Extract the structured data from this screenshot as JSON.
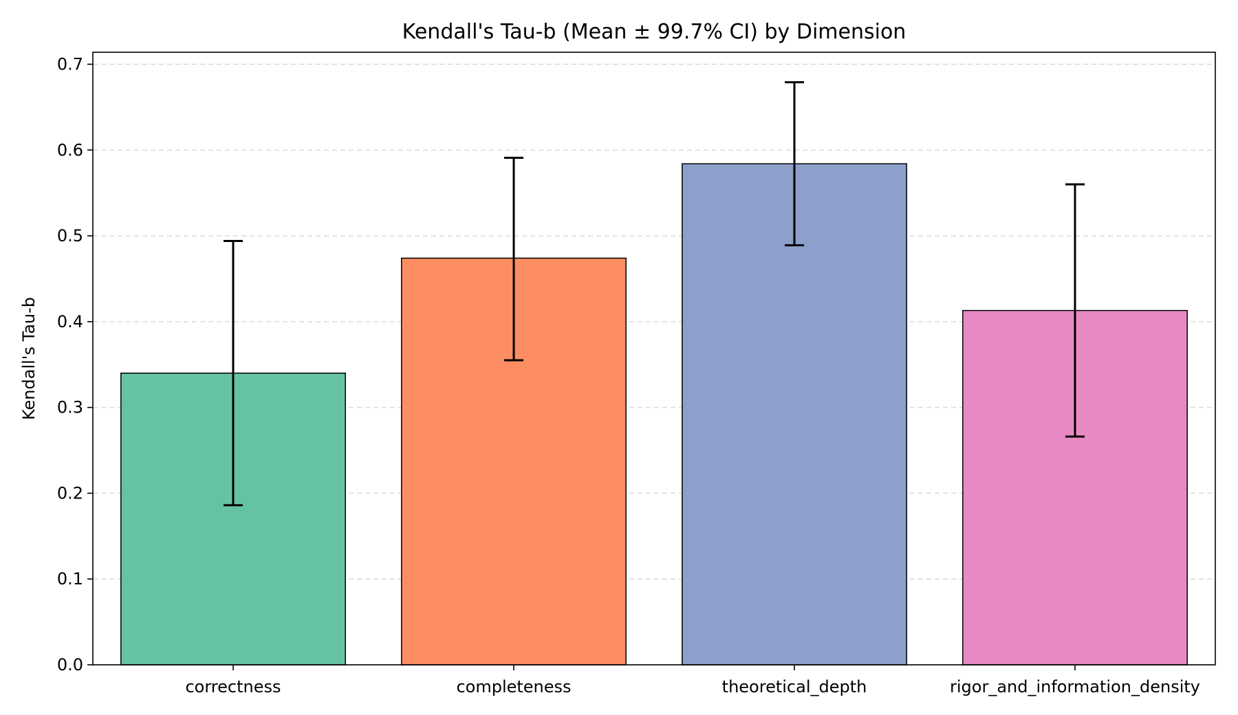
{
  "chart_data": {
    "type": "bar",
    "title": "Kendall's Tau-b (Mean ± 99.7% CI) by Dimension",
    "xlabel": "",
    "ylabel": "Kendall's Tau-b",
    "ylim": [
      0,
      0.714
    ],
    "yticks": [
      0.0,
      0.1,
      0.2,
      0.3,
      0.4,
      0.5,
      0.6,
      0.7
    ],
    "ytick_labels": [
      "0.0",
      "0.1",
      "0.2",
      "0.3",
      "0.4",
      "0.5",
      "0.6",
      "0.7"
    ],
    "grid": "y-dashed",
    "categories": [
      "correctness",
      "completeness",
      "theoretical_depth",
      "rigor_and_information_density"
    ],
    "values": [
      0.34,
      0.474,
      0.584,
      0.413
    ],
    "error_low": [
      0.186,
      0.355,
      0.489,
      0.266
    ],
    "error_high": [
      0.494,
      0.591,
      0.679,
      0.56
    ],
    "colors": [
      "#66c2a5",
      "#fc8d62",
      "#8da0cb",
      "#e78ac3"
    ]
  }
}
